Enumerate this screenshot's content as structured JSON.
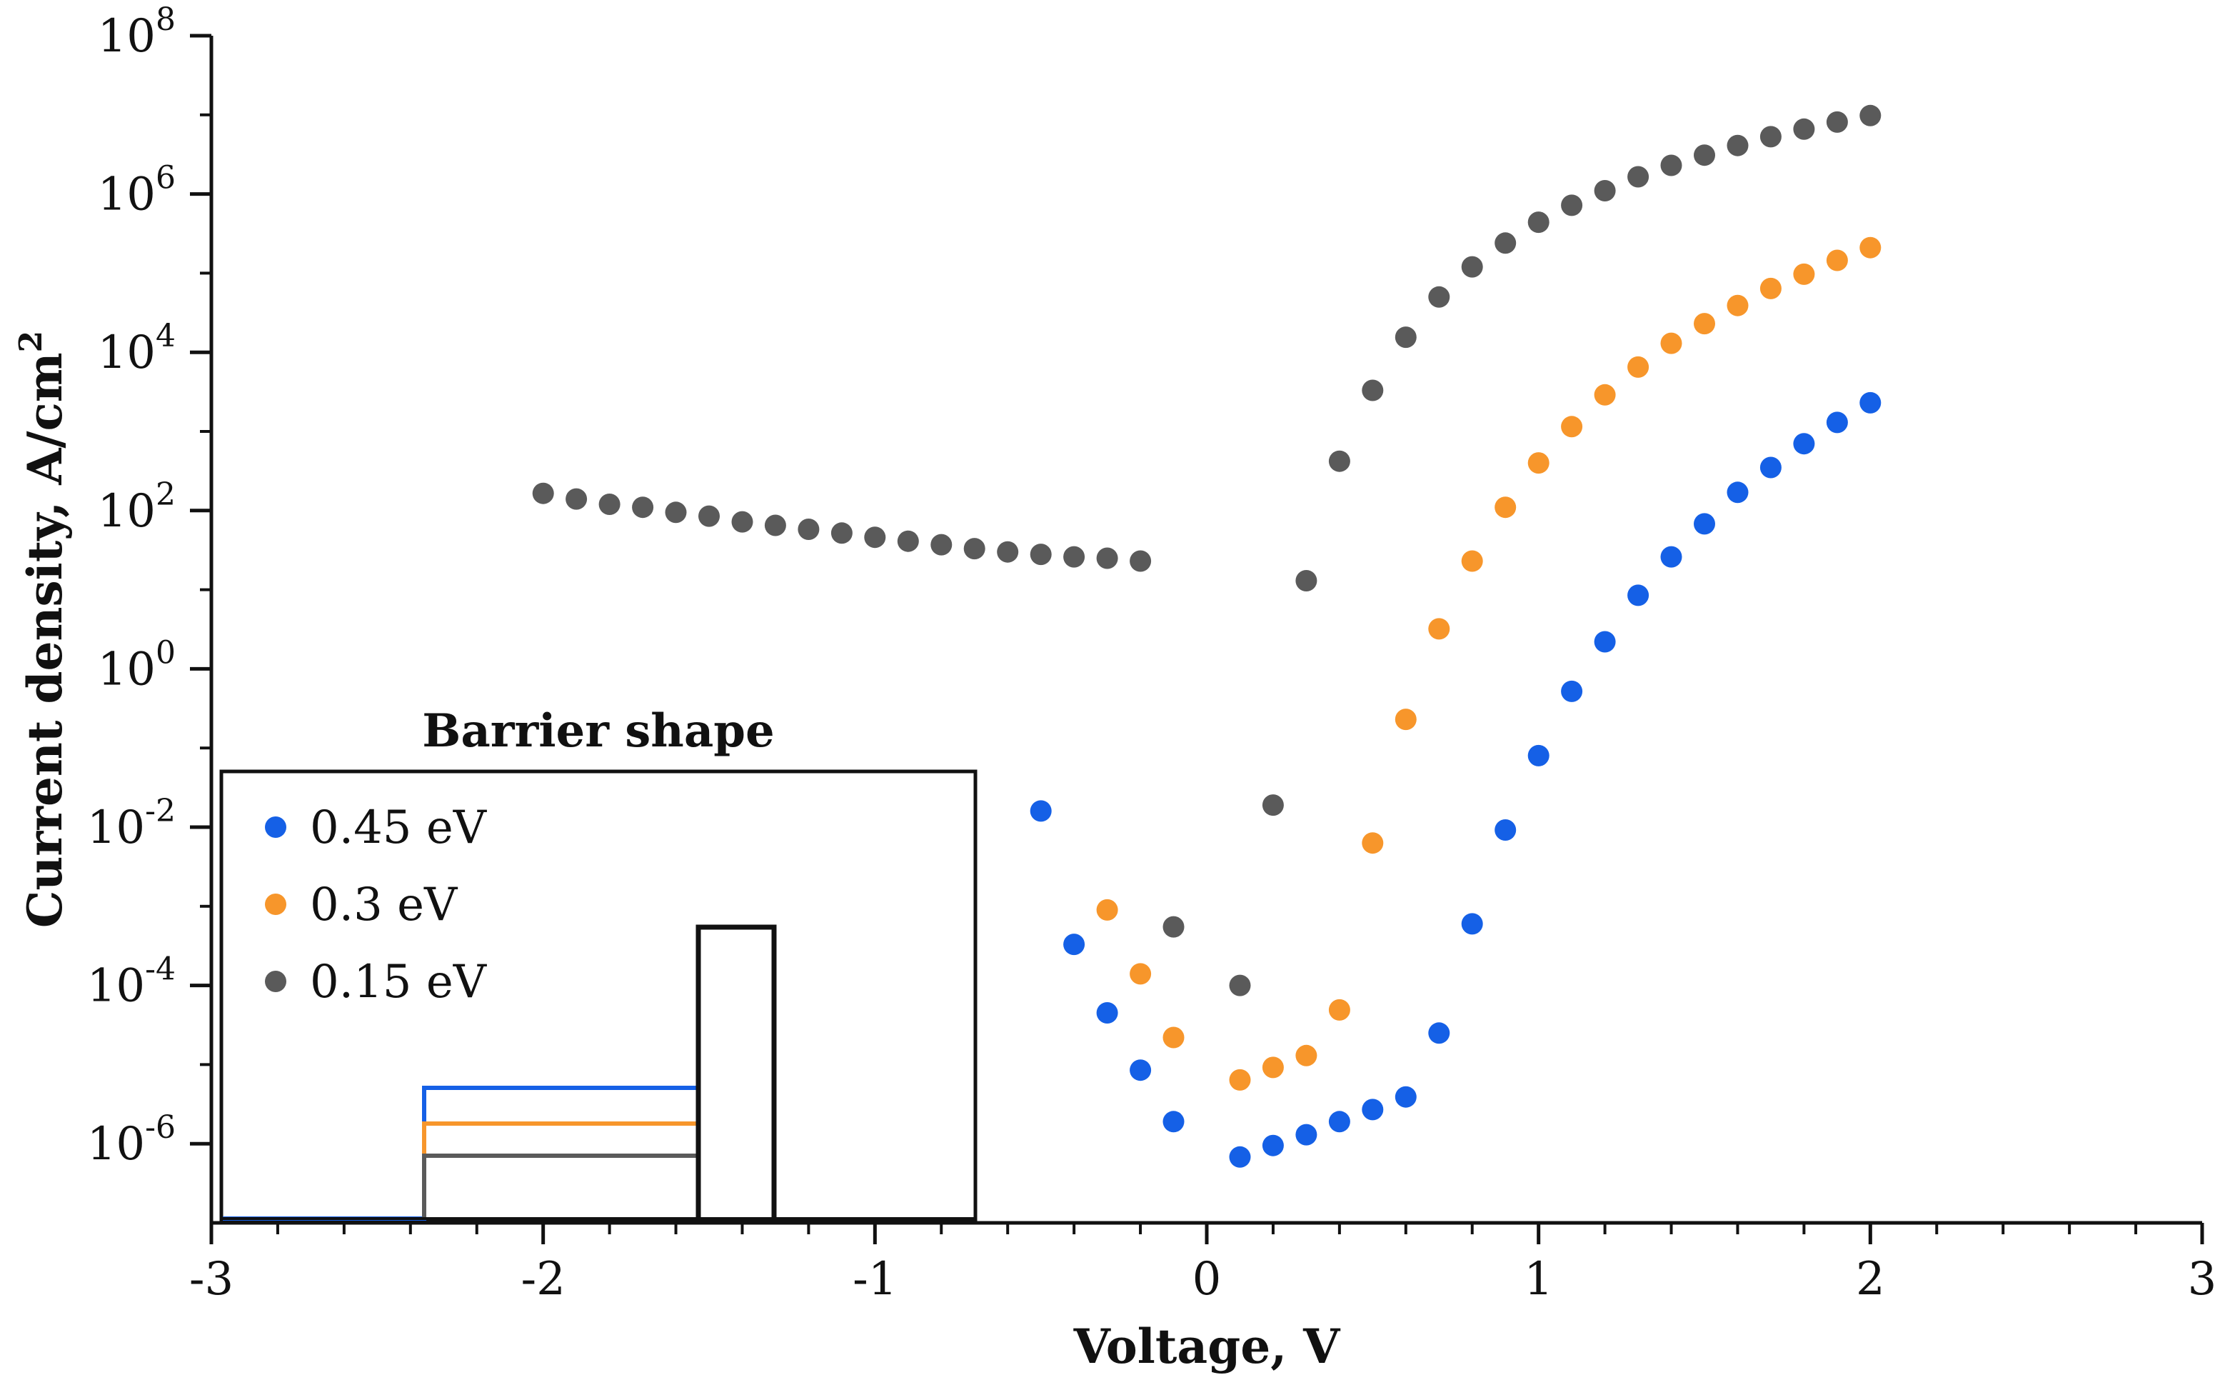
{
  "chart_data": {
    "type": "scatter",
    "title": "",
    "xlabel": "Voltage, V",
    "ylabel": "Current density, A/cm",
    "ylabel_sup": "2",
    "xscale": "linear",
    "yscale": "log",
    "xlim": [
      -3,
      3
    ],
    "ylim_exp": [
      -7,
      8
    ],
    "x_ticks": [
      -3,
      -2,
      -1,
      0,
      1,
      2,
      3
    ],
    "x_tick_labels": [
      "-3",
      "-2",
      "-1",
      "0",
      "1",
      "2",
      "3"
    ],
    "y_tick_exps": [
      -6,
      -4,
      -2,
      0,
      2,
      4,
      6,
      8
    ],
    "y_tick_base": "10",
    "y_tick_sups": [
      "-6",
      "-4",
      "-2",
      "0",
      "2",
      "4",
      "6",
      "8"
    ],
    "legend": {
      "title": "Barrier shape",
      "position": "lower-left",
      "entries": [
        "0.45 eV",
        "0.3 eV",
        "0.15 eV"
      ]
    },
    "inset": {
      "description": "barrier profile",
      "levels": [
        0.45,
        0.3,
        0.15
      ]
    },
    "series": [
      {
        "name": "0.45 eV",
        "color": "#1560e6",
        "points": [
          [
            -0.5,
            0.016
          ],
          [
            -0.4,
            0.00033
          ],
          [
            -0.3,
            4.5e-05
          ],
          [
            -0.2,
            8.5e-06
          ],
          [
            -0.1,
            1.9e-06
          ],
          [
            0.1,
            6.8e-07
          ],
          [
            0.2,
            9.5e-07
          ],
          [
            0.3,
            1.3e-06
          ],
          [
            0.4,
            1.9e-06
          ],
          [
            0.5,
            2.7e-06
          ],
          [
            0.6,
            3.9e-06
          ],
          [
            0.7,
            2.5e-05
          ],
          [
            0.8,
            0.0006
          ],
          [
            0.9,
            0.0092
          ],
          [
            1.0,
            0.08
          ],
          [
            1.1,
            0.52
          ],
          [
            1.2,
            2.2
          ],
          [
            1.3,
            8.5
          ],
          [
            1.4,
            26
          ],
          [
            1.5,
            68
          ],
          [
            1.6,
            170
          ],
          [
            1.7,
            350
          ],
          [
            1.8,
            700
          ],
          [
            1.9,
            1300
          ],
          [
            2.0,
            2300
          ]
        ]
      },
      {
        "name": "0.3 eV",
        "color": "#f7962b",
        "points": [
          [
            -0.3,
            0.0009
          ],
          [
            -0.2,
            0.00014
          ],
          [
            -0.1,
            2.2e-05
          ],
          [
            0.1,
            6.4e-06
          ],
          [
            0.2,
            9.2e-06
          ],
          [
            0.3,
            1.3e-05
          ],
          [
            0.4,
            4.9e-05
          ],
          [
            0.5,
            0.0063
          ],
          [
            0.6,
            0.23
          ],
          [
            0.7,
            3.2
          ],
          [
            0.8,
            23
          ],
          [
            0.9,
            110
          ],
          [
            1.0,
            400
          ],
          [
            1.1,
            1150
          ],
          [
            1.2,
            2900
          ],
          [
            1.3,
            6500
          ],
          [
            1.4,
            13000
          ],
          [
            1.5,
            23000
          ],
          [
            1.6,
            39000
          ],
          [
            1.7,
            64000
          ],
          [
            1.8,
            97000
          ],
          [
            1.9,
            145000
          ],
          [
            2.0,
            210000
          ]
        ]
      },
      {
        "name": "0.15 eV",
        "color": "#5a5a5a",
        "points": [
          [
            -2.0,
            165
          ],
          [
            -1.9,
            140
          ],
          [
            -1.8,
            120
          ],
          [
            -1.7,
            110
          ],
          [
            -1.6,
            95
          ],
          [
            -1.5,
            85
          ],
          [
            -1.4,
            72
          ],
          [
            -1.3,
            65
          ],
          [
            -1.2,
            58
          ],
          [
            -1.1,
            52
          ],
          [
            -1.0,
            46
          ],
          [
            -0.9,
            41
          ],
          [
            -0.8,
            37
          ],
          [
            -0.7,
            33
          ],
          [
            -0.6,
            30
          ],
          [
            -0.5,
            28
          ],
          [
            -0.4,
            26
          ],
          [
            -0.3,
            25
          ],
          [
            -0.2,
            23
          ],
          [
            -0.1,
            0.00055
          ],
          [
            0.1,
            0.0001
          ],
          [
            0.2,
            0.019
          ],
          [
            0.3,
            13
          ],
          [
            0.4,
            420
          ],
          [
            0.5,
            3300
          ],
          [
            0.6,
            15500
          ],
          [
            0.7,
            50000
          ],
          [
            0.8,
            120000
          ],
          [
            0.9,
            240000
          ],
          [
            1.0,
            440000
          ],
          [
            1.1,
            720000
          ],
          [
            1.2,
            1100000
          ],
          [
            1.3,
            1650000
          ],
          [
            1.4,
            2300000
          ],
          [
            1.5,
            3100000
          ],
          [
            1.6,
            4100000
          ],
          [
            1.7,
            5300000
          ],
          [
            1.8,
            6600000
          ],
          [
            1.9,
            8100000
          ],
          [
            2.0,
            9800000
          ]
        ]
      }
    ]
  }
}
